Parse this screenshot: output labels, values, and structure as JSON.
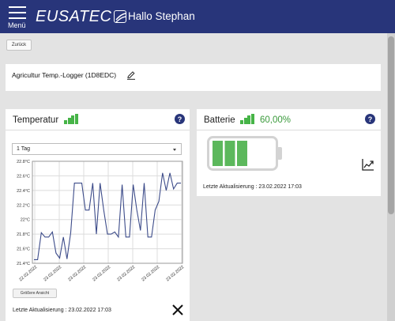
{
  "header": {
    "menu_label": "Menü",
    "logo_text": "EUSATEC",
    "greeting": "Hallo Stephan",
    "bar_color": "#28357a"
  },
  "toolbar": {
    "back_label": "Zurück"
  },
  "device": {
    "name": "Agricultur Temp.-Logger (1D8EDC)"
  },
  "temperature_card": {
    "title": "Temperatur",
    "signal_bars": 4,
    "range_select": {
      "selected": "1 Tag"
    },
    "enlarge_label": "Größere Ansicht",
    "last_update": "Letzte Aktualisierung : 23.02.2022 17:03"
  },
  "battery_card": {
    "title": "Batterie",
    "signal_bars": 4,
    "percent": "60,00%",
    "level_fraction": 0.6,
    "last_update": "Letzte Aktualisierung : 23.02.2022 17:03",
    "fill_color": "#5cb85c"
  },
  "chart_data": {
    "type": "line",
    "title": "",
    "xlabel": "",
    "ylabel": "",
    "ylim": [
      21.4,
      22.8
    ],
    "yticks": [
      "21.4°C",
      "21.6°C",
      "21.8°C",
      "22°C",
      "22.2°C",
      "22.4°C",
      "22.6°C",
      "22.8°C"
    ],
    "xticks": [
      "22.02.2022",
      "23.02.2022",
      "23.02.2022",
      "23.02.2022",
      "23.02.2022",
      "23.02.2022",
      "23.02.2022"
    ],
    "grid": true,
    "line_color": "#3d4c8a",
    "series": [
      {
        "values": [
          21.45,
          21.45,
          21.82,
          21.76,
          21.76,
          21.83,
          21.54,
          21.47,
          21.76,
          21.46,
          21.82,
          22.5,
          22.5,
          22.5,
          22.13,
          22.13,
          22.5,
          21.8,
          22.5,
          22.13,
          21.8,
          21.8,
          21.83,
          21.76,
          22.48,
          21.76,
          21.76,
          22.48,
          22.13,
          21.85,
          22.5,
          21.76,
          21.76,
          22.13,
          22.25,
          22.64,
          22.4,
          22.64,
          22.42,
          22.5,
          22.5
        ]
      }
    ]
  }
}
